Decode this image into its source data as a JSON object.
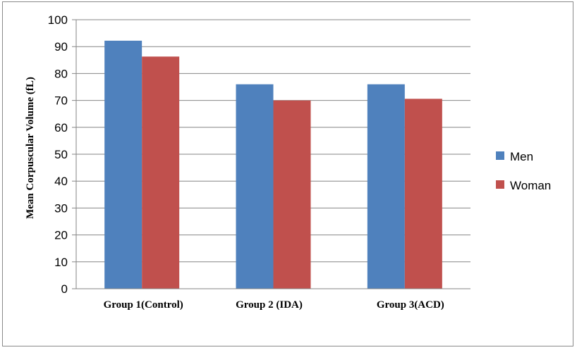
{
  "chart_data": {
    "type": "bar",
    "categories": [
      "Group  1(Control)",
      "Group  2 (IDA)",
      "Group  3(ACD)"
    ],
    "series": [
      {
        "name": "Men",
        "values": [
          92.2,
          76,
          76
        ],
        "color": "#4f81bd"
      },
      {
        "name": "Woman",
        "values": [
          86.3,
          70,
          70.6
        ],
        "color": "#c0504d"
      }
    ],
    "title": "",
    "xlabel": "",
    "ylabel": "Mean Corpuscular Volume  (fL)",
    "ylim": [
      0,
      100
    ],
    "yticks": [
      "0",
      "10",
      "20",
      "30",
      "40",
      "50",
      "60",
      "70",
      "80",
      "90",
      "100"
    ],
    "grid": true,
    "legend_position": "right"
  }
}
